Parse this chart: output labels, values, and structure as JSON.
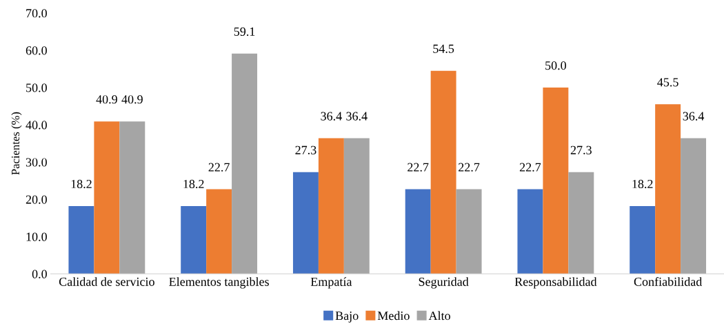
{
  "chart_data": {
    "type": "bar",
    "ylabel": "Pacientes (%)",
    "categories": [
      "Calidad de servicio",
      "Elementos tangibles",
      "Empatía",
      "Seguridad",
      "Responsabilidad",
      "Confiabilidad"
    ],
    "series": [
      {
        "name": "Bajo",
        "color": "#4472c4",
        "values": [
          18.2,
          18.2,
          27.3,
          22.7,
          22.7,
          18.2
        ],
        "value_labels": [
          "18.2",
          "18.2",
          "27.3",
          "22.7",
          "22.7",
          "18.2"
        ]
      },
      {
        "name": "Medio",
        "color": "#ed7d31",
        "values": [
          40.9,
          22.7,
          36.4,
          54.5,
          50.0,
          45.5
        ],
        "value_labels": [
          "40.9",
          "22.7",
          "36.4",
          "54.5",
          "50.0",
          "45.5"
        ]
      },
      {
        "name": "Alto",
        "color": "#a5a5a5",
        "values": [
          40.9,
          59.1,
          36.4,
          22.7,
          27.3,
          36.4
        ],
        "value_labels": [
          "40.9",
          "59.1",
          "36.4",
          "22.7",
          "27.3",
          "36.4"
        ]
      }
    ],
    "ylim": [
      0,
      70
    ],
    "yticks": [
      {
        "value": 0,
        "label": "0.0"
      },
      {
        "value": 10,
        "label": "10.0"
      },
      {
        "value": 20,
        "label": "20.0"
      },
      {
        "value": 30,
        "label": "30.0"
      },
      {
        "value": 40,
        "label": "40.0"
      },
      {
        "value": 50,
        "label": "50.0"
      },
      {
        "value": 60,
        "label": "60.0"
      },
      {
        "value": 70,
        "label": "70.0"
      }
    ],
    "grid": false,
    "legend": "bottom"
  }
}
